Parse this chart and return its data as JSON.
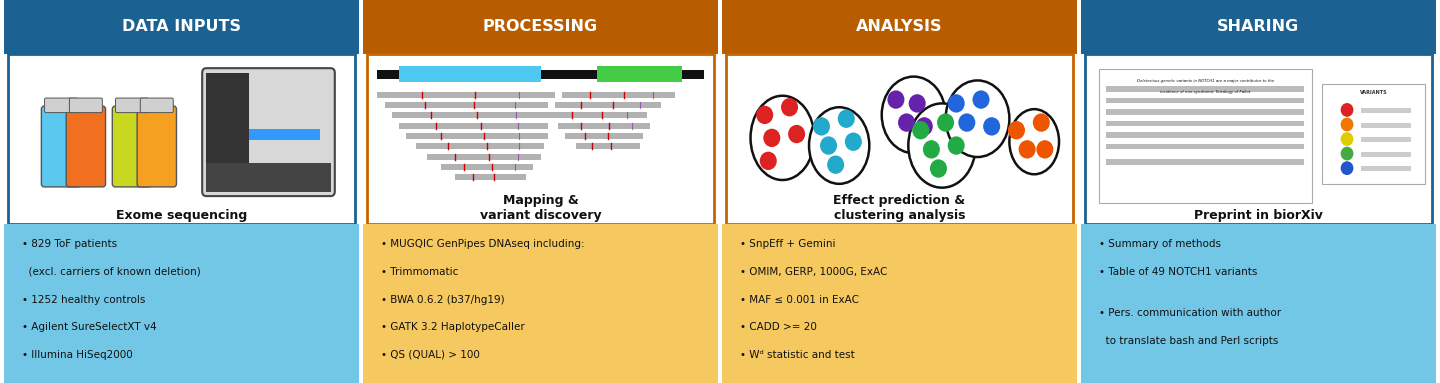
{
  "sections": [
    "DATA INPUTS",
    "PROCESSING",
    "ANALYSIS",
    "SHARING"
  ],
  "header_colors": [
    "#1b6191",
    "#b85c00",
    "#b85c00",
    "#1b6191"
  ],
  "header_text_color": "#ffffff",
  "box_border_colors": [
    "#1b6191",
    "#c86400",
    "#c86400",
    "#1b6191"
  ],
  "bullet_bg_colors": [
    "#72c7e7",
    "#f5c860",
    "#f5c860",
    "#72c7e7"
  ],
  "image_labels": [
    "Exome sequencing",
    "Mapping &\nvariant discovery",
    "Effect prediction &\nclustering analysis",
    "Preprint in biorXiv"
  ],
  "bullets": [
    [
      "• 829 ToF patients",
      "  (excl. carriers of known deletion)",
      "• 1252 healthy controls",
      "• Agilent SureSelectXT v4",
      "• Illumina HiSeq2000"
    ],
    [
      "• MUGQIC GenPipes DNAseq including:",
      "• Trimmomatic",
      "• BWA 0.6.2 (b37/hg19)",
      "• GATK 3.2 HaplotypeCaller",
      "• QS (QUAL) > 100"
    ],
    [
      "• SnpEff + Gemini",
      "• OMIM, GERP, 1000G, ExAC",
      "• MAF ≤ 0.001 in ExAC",
      "• CADD >= 20",
      "• Wᵈ statistic and test"
    ],
    [
      "• Summary of methods",
      "• Table of 49 NOTCH1 variants",
      "",
      "• Pers. communication with author",
      "  to translate bash and Perl scripts"
    ]
  ],
  "bg_color": "#ffffff"
}
